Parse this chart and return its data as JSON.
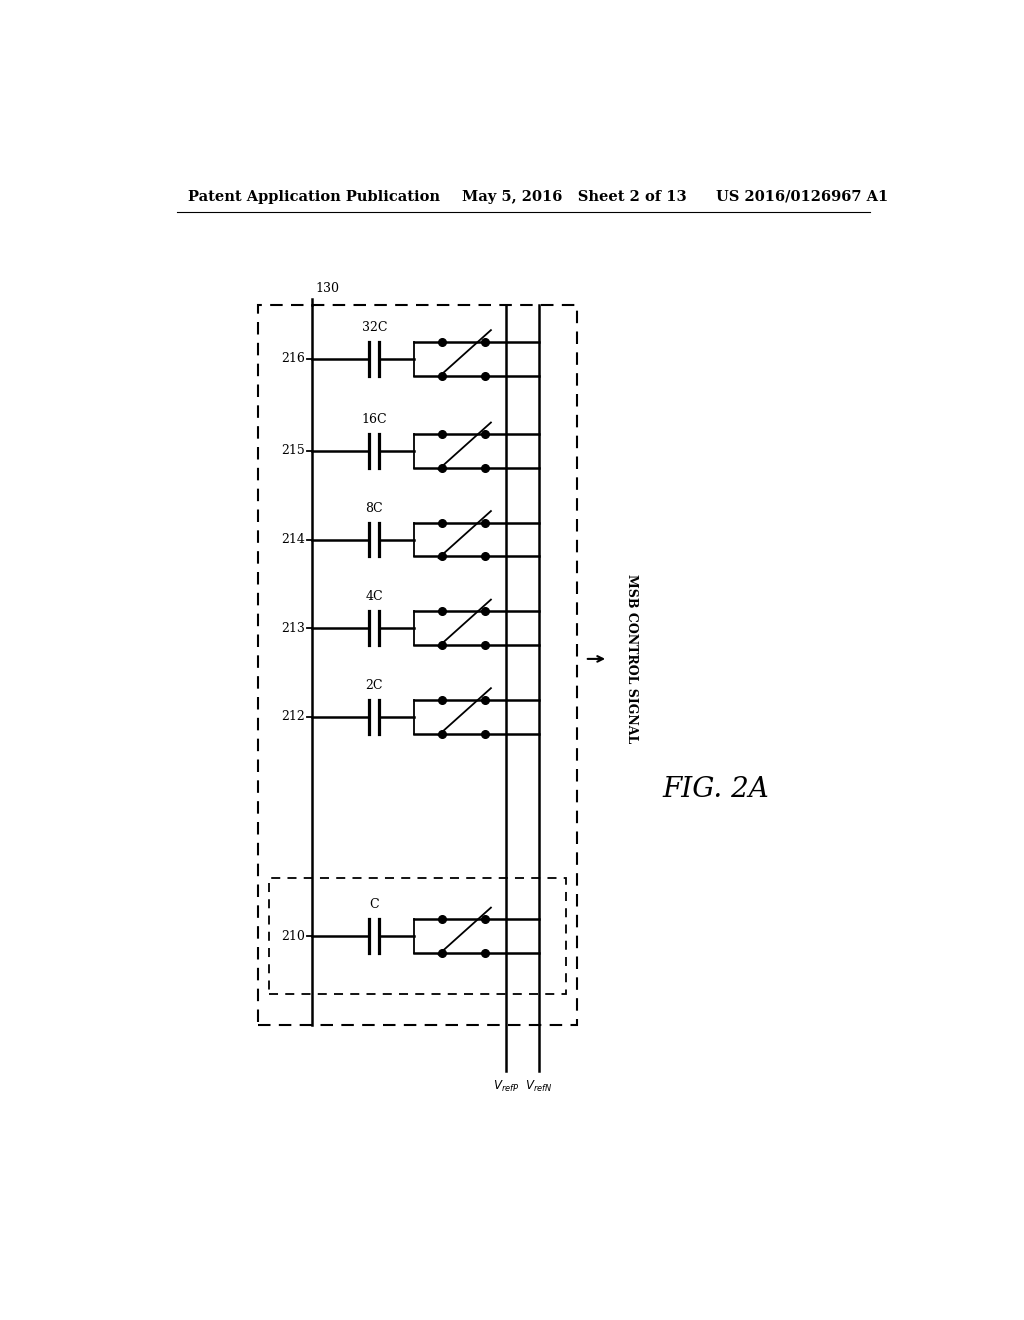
{
  "bg_color": "#ffffff",
  "header_left": "Patent Application Publication",
  "header_mid": "May 5, 2016   Sheet 2 of 13",
  "header_right": "US 2016/0126967 A1",
  "fig_label": "FIG. 2A",
  "msb_label": "MSB CONTROL SIGNAL",
  "capacitor_labels": [
    "32C",
    "16C",
    "8C",
    "4C",
    "2C",
    "C"
  ],
  "row_labels": [
    "216",
    "215",
    "214",
    "213",
    "212",
    "210"
  ],
  "row_label_130": "130"
}
